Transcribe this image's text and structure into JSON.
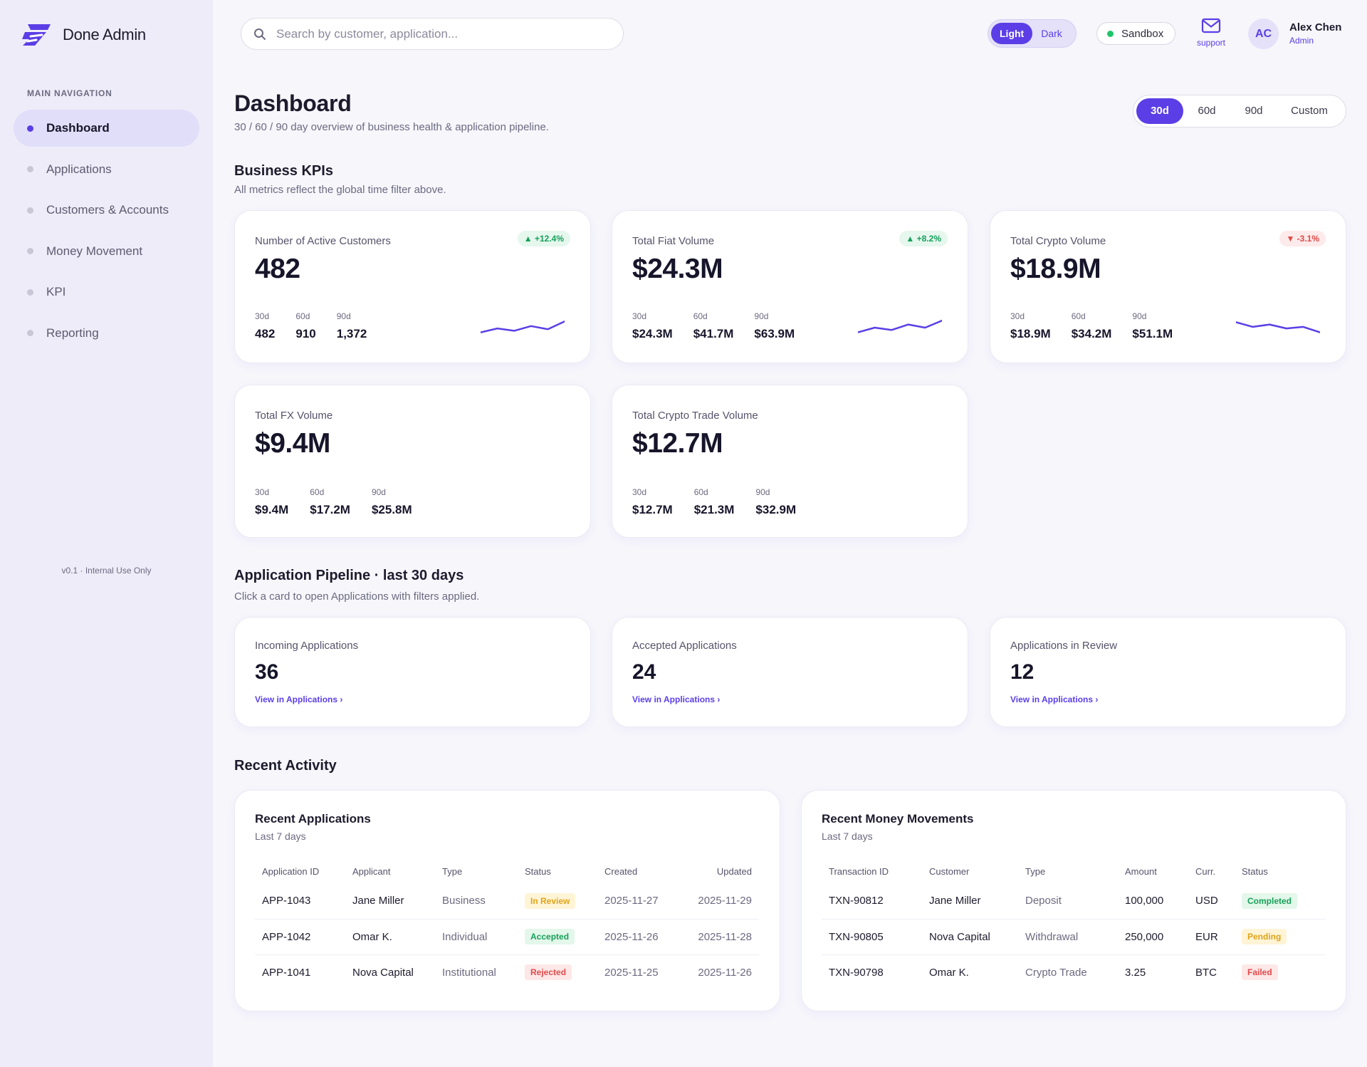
{
  "brand": {
    "name": "Done Admin",
    "logo_icon": "lightning-logo-icon",
    "accent": "#5b3ee6"
  },
  "sidebar": {
    "heading": "MAIN NAVIGATION",
    "items": [
      {
        "label": "Dashboard",
        "active": true
      },
      {
        "label": "Applications",
        "active": false
      },
      {
        "label": "Customers & Accounts",
        "active": false
      },
      {
        "label": "Money Movement",
        "active": false
      },
      {
        "label": "KPI",
        "active": false
      },
      {
        "label": "Reporting",
        "active": false
      }
    ],
    "version": "v0.1 · Internal Use Only"
  },
  "topbar": {
    "search_placeholder": "Search by customer, application...",
    "search_value": "",
    "theme": {
      "light": "Light",
      "dark": "Dark",
      "selected": "Light"
    },
    "environment": "Sandbox",
    "environment_color": "#1fc46a",
    "support_label": "support",
    "user": {
      "initials": "AC",
      "name": "Alex Chen",
      "role": "Admin"
    }
  },
  "page": {
    "title": "Dashboard",
    "subtitle": "30 / 60 / 90 day overview of business health & application pipeline.",
    "ranges": [
      "30d",
      "60d",
      "90d",
      "Custom"
    ],
    "selected_range": "30d"
  },
  "kpi_section": {
    "title": "Business KPIs",
    "subtitle": "All metrics reflect the global time filter above.",
    "cards": [
      {
        "label": "Number of Active Customers",
        "value": "482",
        "delta": "▲ +12.4%",
        "trend": "up",
        "periods": [
          {
            "label": "30d",
            "value": "482"
          },
          {
            "label": "60d",
            "value": "910"
          },
          {
            "label": "90d",
            "value": "1,372"
          }
        ],
        "spark": [
          0.2,
          0.45,
          0.3,
          0.6,
          0.4,
          0.9
        ]
      },
      {
        "label": "Total Fiat Volume",
        "value": "$24.3M",
        "delta": "▲ +8.2%",
        "trend": "up",
        "periods": [
          {
            "label": "30d",
            "value": "$24.3M"
          },
          {
            "label": "60d",
            "value": "$41.7M"
          },
          {
            "label": "90d",
            "value": "$63.9M"
          }
        ],
        "spark": [
          0.2,
          0.5,
          0.35,
          0.7,
          0.5,
          0.95
        ]
      },
      {
        "label": "Total Crypto Volume",
        "value": "$18.9M",
        "delta": "▼ -3.1%",
        "trend": "down",
        "periods": [
          {
            "label": "30d",
            "value": "$18.9M"
          },
          {
            "label": "60d",
            "value": "$34.2M"
          },
          {
            "label": "90d",
            "value": "$51.1M"
          }
        ],
        "spark": [
          0.85,
          0.55,
          0.7,
          0.45,
          0.55,
          0.2
        ]
      },
      {
        "label": "Total FX Volume",
        "value": "$9.4M",
        "delta": "",
        "trend": "",
        "periods": [
          {
            "label": "30d",
            "value": "$9.4M"
          },
          {
            "label": "60d",
            "value": "$17.2M"
          },
          {
            "label": "90d",
            "value": "$25.8M"
          }
        ]
      },
      {
        "label": "Total Crypto Trade Volume",
        "value": "$12.7M",
        "delta": "",
        "trend": "",
        "periods": [
          {
            "label": "30d",
            "value": "$12.7M"
          },
          {
            "label": "60d",
            "value": "$21.3M"
          },
          {
            "label": "90d",
            "value": "$32.9M"
          }
        ]
      }
    ]
  },
  "pipeline": {
    "title": "Application Pipeline · last 30 days",
    "subtitle": "Click a card to open Applications with filters applied.",
    "cards": [
      {
        "label": "Incoming Applications",
        "count": "36",
        "link": "View in Applications ›"
      },
      {
        "label": "Accepted Applications",
        "count": "24",
        "link": "View in Applications ›"
      },
      {
        "label": "Applications in Review",
        "count": "12",
        "link": "View in Applications ›"
      }
    ]
  },
  "recent": {
    "title": "Recent Activity",
    "applications": {
      "title": "Recent Applications",
      "subtitle": "Last 7 days",
      "columns": [
        "Application ID",
        "Applicant",
        "Type",
        "Status",
        "Created",
        "Updated"
      ],
      "rows": [
        {
          "id": "APP-1043",
          "applicant": "Jane Miller",
          "type": "Business",
          "status": "In Review",
          "status_key": "review",
          "created": "2025-11-27",
          "updated": "2025-11-29"
        },
        {
          "id": "APP-1042",
          "applicant": "Omar K.",
          "type": "Individual",
          "status": "Accepted",
          "status_key": "accepted",
          "created": "2025-11-26",
          "updated": "2025-11-28"
        },
        {
          "id": "APP-1041",
          "applicant": "Nova Capital",
          "type": "Institutional",
          "status": "Rejected",
          "status_key": "rejected",
          "created": "2025-11-25",
          "updated": "2025-11-26"
        }
      ]
    },
    "movements": {
      "title": "Recent Money Movements",
      "subtitle": "Last 7 days",
      "columns": [
        "Transaction ID",
        "Customer",
        "Type",
        "Amount",
        "Curr.",
        "Status"
      ],
      "rows": [
        {
          "id": "TXN-90812",
          "customer": "Jane Miller",
          "type": "Deposit",
          "amount": "100,000",
          "currency": "USD",
          "status": "Completed",
          "status_key": "completed"
        },
        {
          "id": "TXN-90805",
          "customer": "Nova Capital",
          "type": "Withdrawal",
          "amount": "250,000",
          "currency": "EUR",
          "status": "Pending",
          "status_key": "pending"
        },
        {
          "id": "TXN-90798",
          "customer": "Omar K.",
          "type": "Crypto Trade",
          "amount": "3.25",
          "currency": "BTC",
          "status": "Failed",
          "status_key": "failed"
        }
      ]
    }
  }
}
